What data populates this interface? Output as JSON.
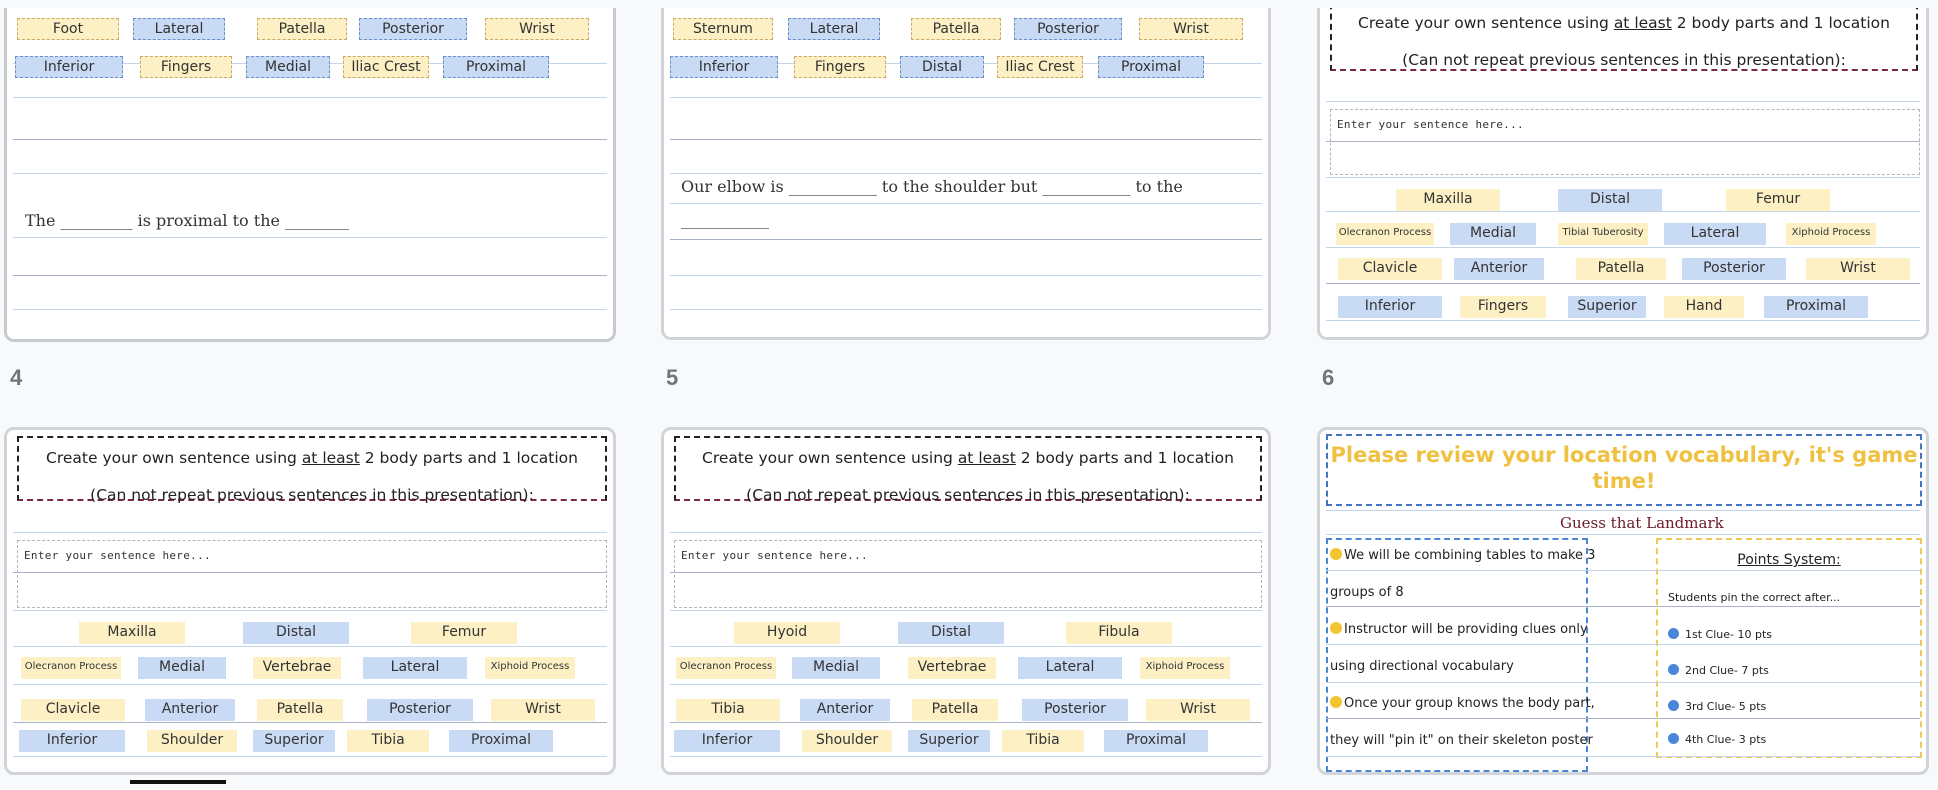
{
  "slides": [
    {
      "chips_row1": [
        "Foot",
        "Lateral",
        "Patella",
        "Posterior",
        "Wrist"
      ],
      "chips_row2": [
        "Inferior",
        "Fingers",
        "Medial",
        "Iliac Crest",
        "Proximal"
      ],
      "sentence": "The _________ is proximal to the ________"
    },
    {
      "chips_row1": [
        "Sternum",
        "Lateral",
        "Patella",
        "Posterior",
        "Wrist"
      ],
      "chips_row2": [
        "Inferior",
        "Fingers",
        "Distal",
        "Iliac Crest",
        "Proximal"
      ],
      "sentence_line1": "Our elbow is ___________ to the shoulder but ___________ to the",
      "sentence_line2": "___________"
    },
    {
      "prompt_pre": "Create your own sentence using ",
      "prompt_underlined": "at least",
      "prompt_post": " 2 body parts and 1 location",
      "prompt_line2": "(Can not repeat previous sentences in this presentation):",
      "placeholder": "Enter your sentence here...",
      "rows": [
        [
          "Maxilla",
          "Distal",
          "Femur"
        ],
        [
          "Olecranon Process",
          "Medial",
          "Tibial Tuberosity",
          "Lateral",
          "Xiphoid Process"
        ],
        [
          "Clavicle",
          "Anterior",
          "Patella",
          "Posterior",
          "Wrist"
        ],
        [
          "Inferior",
          "Fingers",
          "Superior",
          "Hand",
          "Proximal"
        ]
      ]
    },
    {
      "number": "4",
      "prompt_pre": "Create your own sentence using ",
      "prompt_underlined": "at least",
      "prompt_post": " 2 body parts and 1 location",
      "prompt_line2": "(Can not repeat previous sentences in this presentation):",
      "placeholder": "Enter your sentence here...",
      "rows": [
        [
          "Maxilla",
          "Distal",
          "Femur"
        ],
        [
          "Olecranon Process",
          "Medial",
          "Vertebrae",
          "Lateral",
          "Xiphoid Process"
        ],
        [
          "Clavicle",
          "Anterior",
          "Patella",
          "Posterior",
          "Wrist"
        ],
        [
          "Inferior",
          "Shoulder",
          "Superior",
          "Tibia",
          "Proximal"
        ]
      ]
    },
    {
      "number": "5",
      "prompt_pre": "Create your own sentence using ",
      "prompt_underlined": "at least",
      "prompt_post": " 2 body parts and 1 location",
      "prompt_line2": "(Can not repeat previous sentences in this presentation):",
      "placeholder": "Enter your sentence here...",
      "rows": [
        [
          "Hyoid",
          "Distal",
          "Fibula"
        ],
        [
          "Olecranon Process",
          "Medial",
          "Vertebrae",
          "Lateral",
          "Xiphoid Process"
        ],
        [
          "Tibia",
          "Anterior",
          "Patella",
          "Posterior",
          "Wrist"
        ],
        [
          "Inferior",
          "Shoulder",
          "Superior",
          "Tibia",
          "Proximal"
        ]
      ]
    },
    {
      "number": "6",
      "title": "Please review your location vocabulary, it's game time!",
      "subtitle": "Guess that Landmark",
      "instructions": [
        "We will be combining tables to make 3",
        "groups of 8",
        "Instructor will be providing clues only",
        "using directional vocabulary",
        "Once your group knows the body part,",
        "they will \"pin it\" on their skeleton poster"
      ],
      "points_title": "Points System:",
      "points_intro": "Students pin the correct after...",
      "points": [
        "1st Clue- 10 pts",
        "2nd Clue- 7 pts",
        "3rd Clue- 5 pts",
        "4th Clue- 3 pts"
      ]
    }
  ],
  "colors": {
    "chip_yellow": "#fdf0c4",
    "chip_blue": "#c9daf4",
    "game_title": "#f0c040",
    "game_blue": "#4a86d8"
  }
}
